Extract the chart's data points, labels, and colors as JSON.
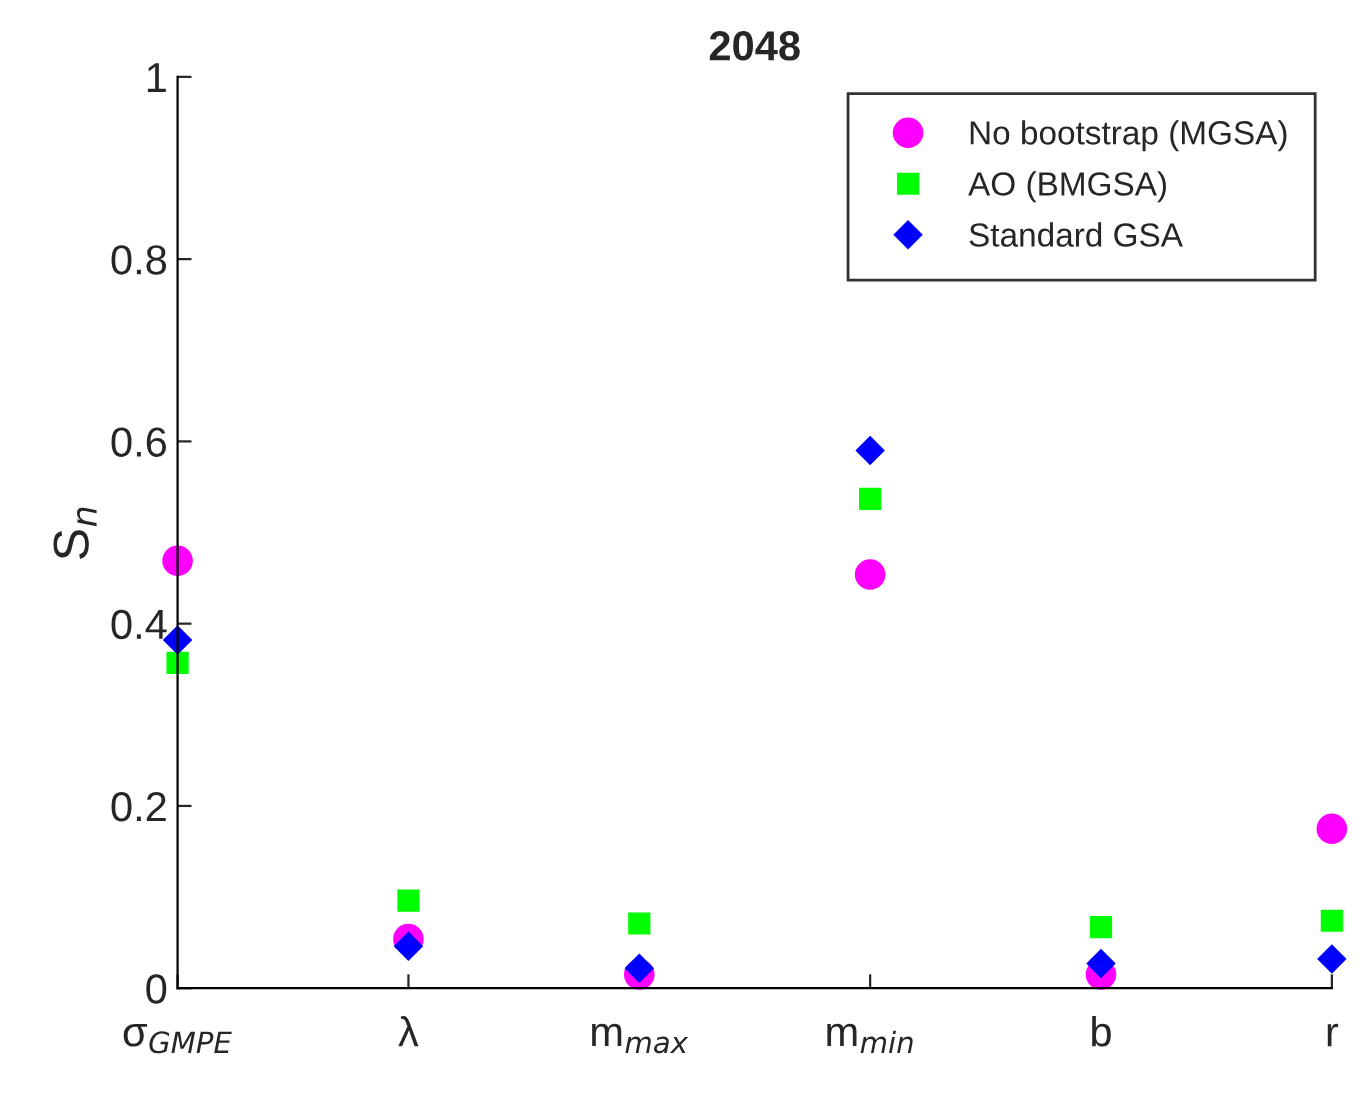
{
  "chart_data": {
    "type": "scatter",
    "title": "2048",
    "ylabel": "S$_{n}$",
    "categories": [
      "σ$_{GMPE}$",
      "λ",
      "m$_{max}$",
      "m$_{min}$",
      "b",
      "r"
    ],
    "series": [
      {
        "name": "No bootstrap (MGSA)",
        "color": "#ff00ff",
        "marker": "circle",
        "values": [
          0.469,
          0.054,
          0.015,
          0.454,
          0.015,
          0.175
        ]
      },
      {
        "name": "AO (BMGSA)",
        "color": "#00ff00",
        "marker": "square",
        "values": [
          0.357,
          0.096,
          0.071,
          0.537,
          0.067,
          0.074
        ]
      },
      {
        "name": "Standard GSA",
        "color": "#0000ff",
        "marker": "diamond",
        "values": [
          0.382,
          0.046,
          0.022,
          0.59,
          0.027,
          0.032
        ]
      }
    ],
    "ylim": [
      0,
      1
    ],
    "yticks": [
      0,
      0.2,
      0.4,
      0.6,
      0.8,
      1
    ],
    "grid": false,
    "legend": "top right"
  }
}
